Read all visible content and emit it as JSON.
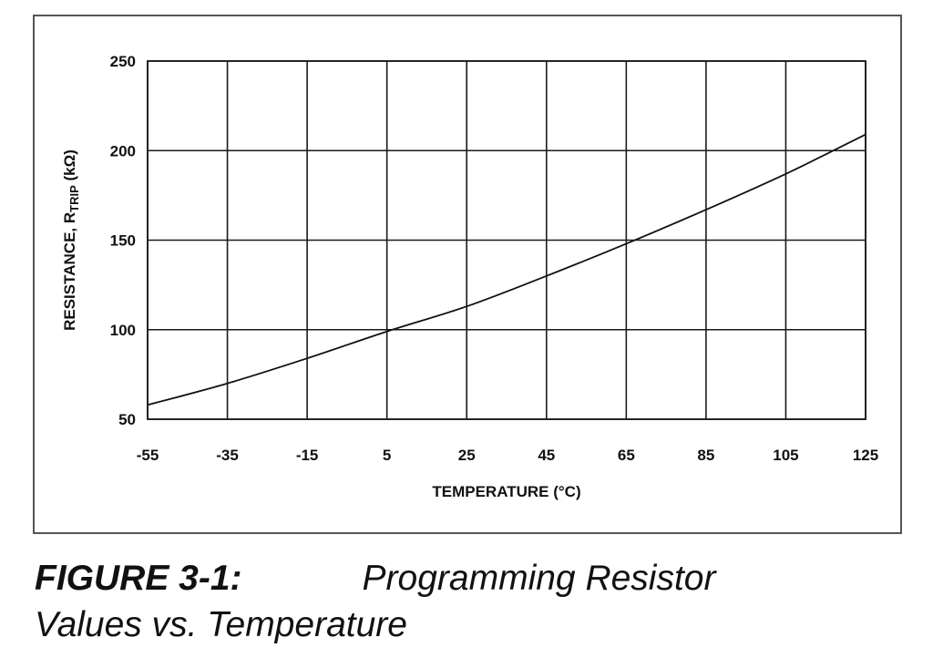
{
  "chart_data": {
    "type": "line",
    "title": "",
    "xlabel": "TEMPERATURE (°C)",
    "ylabel": {
      "prefix": "RESISTANCE, R",
      "subscript": "TRIP",
      "suffix": " (kΩ)"
    },
    "xlim": [
      -55,
      125
    ],
    "ylim": [
      50,
      250
    ],
    "x_ticks": [
      -55,
      -35,
      -15,
      5,
      25,
      45,
      65,
      85,
      105,
      125
    ],
    "y_ticks": [
      50,
      100,
      150,
      200,
      250
    ],
    "grid": true,
    "series": [
      {
        "name": "R_TRIP",
        "x": [
          -55,
          -35,
          -15,
          5,
          25,
          45,
          65,
          85,
          105,
          125
        ],
        "y": [
          58,
          70,
          84,
          99,
          113,
          130,
          148,
          167,
          187,
          209
        ]
      }
    ]
  },
  "caption": {
    "figure_label": "FIGURE 3-1:",
    "title_line1": "Programming Resistor",
    "title_line2": "Values vs. Temperature"
  },
  "colors": {
    "grid": "#1a1a1a",
    "line": "#111111",
    "frame": "#555555"
  }
}
